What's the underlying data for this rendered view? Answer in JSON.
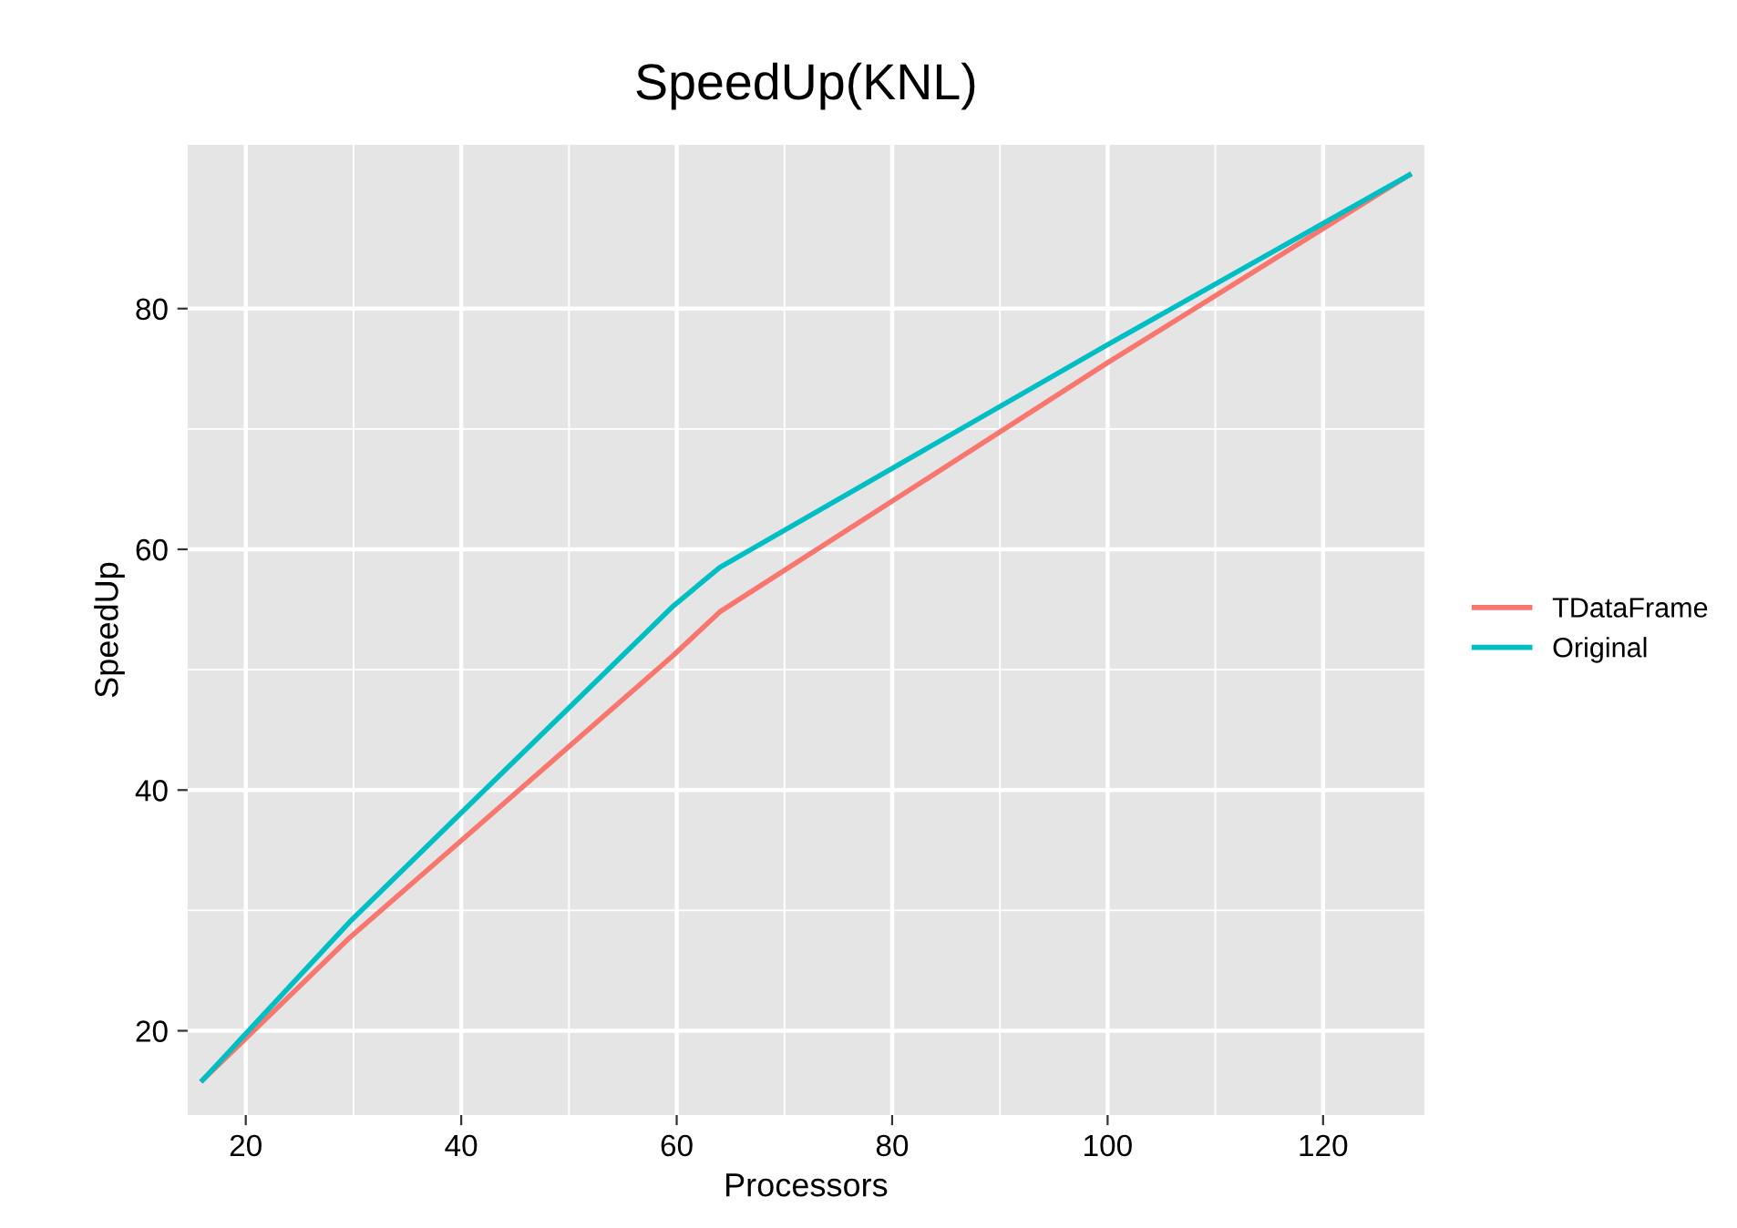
{
  "chart_data": {
    "type": "line",
    "title": "SpeedUp(KNL)",
    "xlabel": "Processors",
    "ylabel": "SpeedUp",
    "x": [
      16,
      29.6,
      40,
      59.7,
      64,
      100,
      128
    ],
    "series": [
      {
        "name": "TDataFrame",
        "color": "#f8766d",
        "values": [
          15.9,
          27.7,
          35.8,
          51.2,
          54.8,
          75.5,
          91.1
        ]
      },
      {
        "name": "Original",
        "color": "#00bfc4",
        "values": [
          15.9,
          29.0,
          38.1,
          55.3,
          58.5,
          77.0,
          91.1
        ]
      }
    ],
    "xlim": [
      14.6,
      129.4
    ],
    "ylim": [
      13,
      93.6
    ],
    "xticks": [
      20,
      40,
      60,
      80,
      100,
      120
    ],
    "yticks": [
      20,
      40,
      60,
      80
    ],
    "grid": true,
    "legend": "right",
    "marker": "none",
    "line_style": "solid"
  }
}
